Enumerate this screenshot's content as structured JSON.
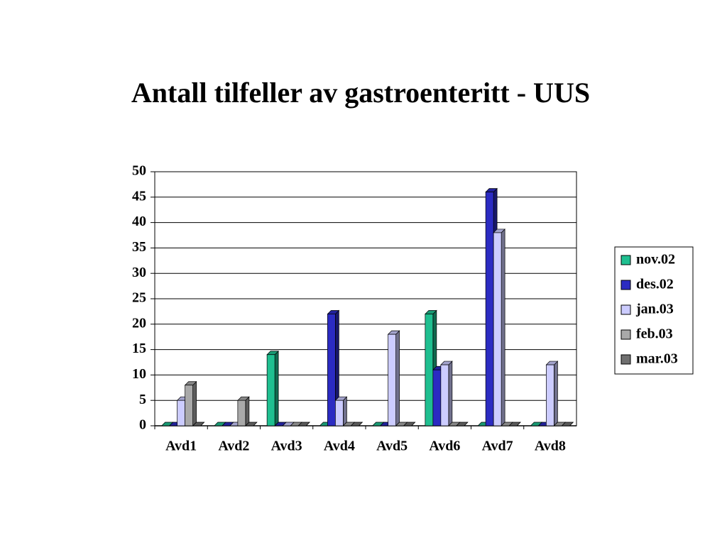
{
  "chart_data": {
    "type": "bar",
    "title": "Antall tilfeller av gastroenteritt - UUS",
    "categories": [
      "Avd1",
      "Avd2",
      "Avd3",
      "Avd4",
      "Avd5",
      "Avd6",
      "Avd7",
      "Avd8"
    ],
    "series": [
      {
        "name": "nov.02",
        "color": "#1fbf90",
        "values": [
          0,
          0,
          14,
          0,
          0,
          22,
          0,
          0
        ]
      },
      {
        "name": "des.02",
        "color": "#2b2bc2",
        "values": [
          0,
          0,
          0,
          22,
          0,
          11,
          46,
          0
        ]
      },
      {
        "name": "jan.03",
        "color": "#ccccff",
        "values": [
          5,
          0,
          0,
          5,
          18,
          12,
          38,
          12
        ]
      },
      {
        "name": "feb.03",
        "color": "#a9a9a9",
        "values": [
          8,
          5,
          0,
          0,
          0,
          0,
          0,
          0
        ]
      },
      {
        "name": "mar.03",
        "color": "#707070",
        "values": [
          0,
          0,
          0,
          0,
          0,
          0,
          0,
          0
        ]
      }
    ],
    "ylim": [
      0,
      50
    ],
    "yticks": [
      0,
      5,
      10,
      15,
      20,
      25,
      30,
      35,
      40,
      45,
      50
    ],
    "grid": true,
    "legend": "right"
  }
}
